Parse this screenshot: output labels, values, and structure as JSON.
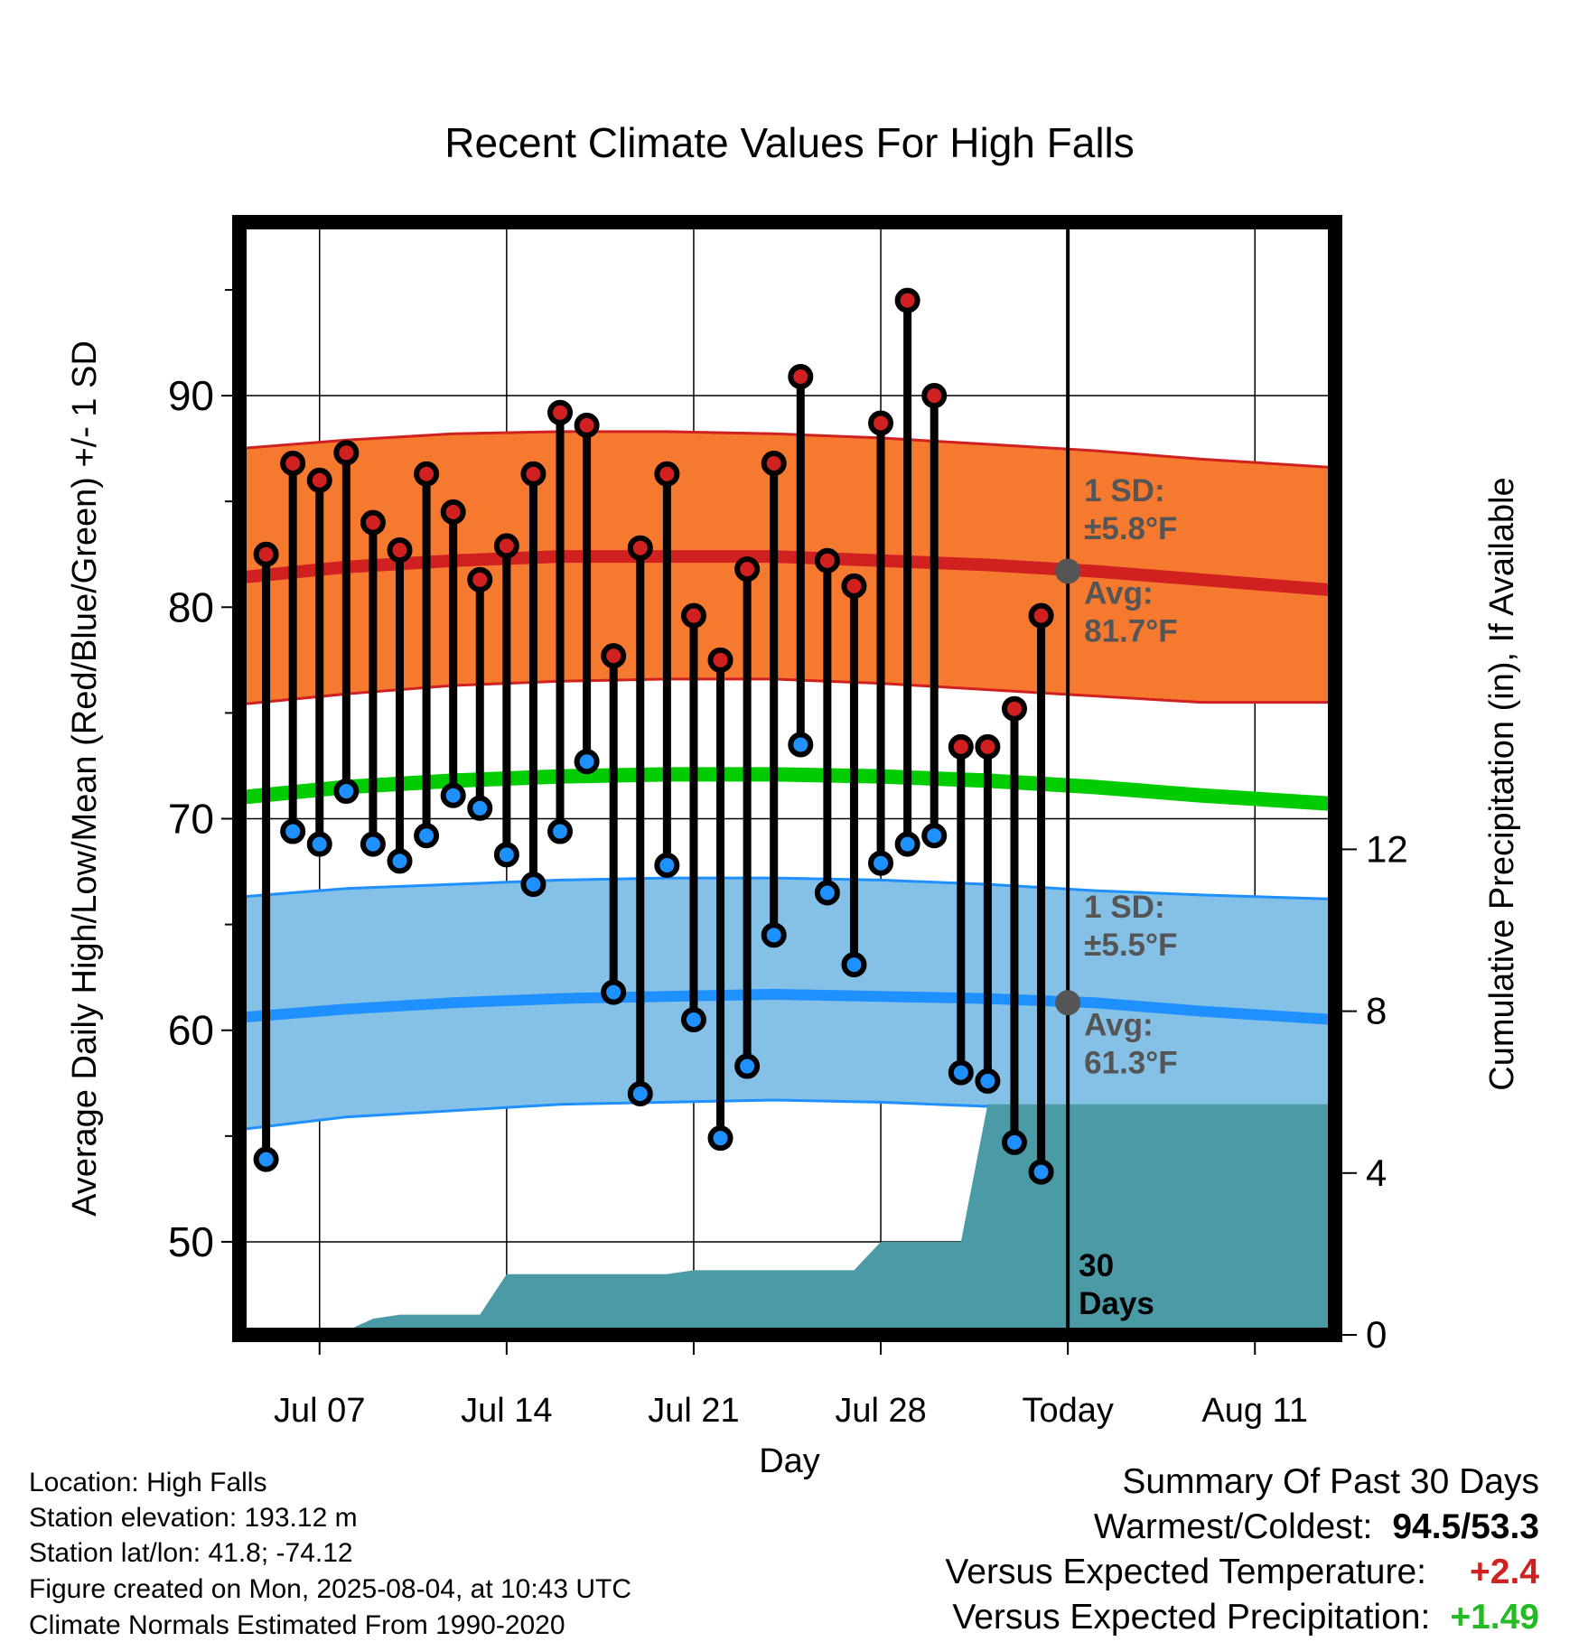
{
  "chart_data": {
    "type": "line",
    "title": "Recent Climate Values For High Falls",
    "xlabel": "Day",
    "ylabel": "Average Daily High/Low/Mean (Red/Blue/Green) +/- 1 SD",
    "y2label": "Cumulative Precipitation (in), If Available",
    "ylim": [
      45.6,
      98.2
    ],
    "y2lim": [
      0,
      27.5
    ],
    "xlim": [
      "2025-07-04",
      "2025-08-14"
    ],
    "y_ticks": [
      50,
      60,
      70,
      80,
      90
    ],
    "y2_ticks": [
      0,
      4,
      8,
      12
    ],
    "x_ticks": [
      {
        "x": "2025-07-07",
        "label": "Jul 07"
      },
      {
        "x": "2025-07-14",
        "label": "Jul 14"
      },
      {
        "x": "2025-07-21",
        "label": "Jul 21"
      },
      {
        "x": "2025-07-28",
        "label": "Jul 28"
      },
      {
        "x": "2025-08-04",
        "label": "Today"
      },
      {
        "x": "2025-08-11",
        "label": "Aug 11"
      }
    ],
    "grid": true,
    "today": "2025-08-04",
    "period_label": "30\nDays",
    "daily": {
      "dates": [
        "2025-07-05",
        "2025-07-06",
        "2025-07-07",
        "2025-07-08",
        "2025-07-09",
        "2025-07-10",
        "2025-07-11",
        "2025-07-12",
        "2025-07-13",
        "2025-07-14",
        "2025-07-15",
        "2025-07-16",
        "2025-07-17",
        "2025-07-18",
        "2025-07-19",
        "2025-07-20",
        "2025-07-21",
        "2025-07-22",
        "2025-07-23",
        "2025-07-24",
        "2025-07-25",
        "2025-07-26",
        "2025-07-27",
        "2025-07-28",
        "2025-07-29",
        "2025-07-30",
        "2025-07-31",
        "2025-08-01",
        "2025-08-02",
        "2025-08-03"
      ],
      "highs": [
        82.5,
        86.8,
        86.0,
        87.3,
        84.0,
        82.7,
        86.3,
        84.5,
        81.3,
        82.9,
        86.3,
        89.2,
        88.6,
        77.7,
        82.8,
        86.3,
        79.6,
        77.5,
        81.8,
        86.8,
        90.9,
        82.2,
        81.0,
        88.7,
        94.5,
        90.0,
        73.4,
        73.4,
        75.2,
        79.6
      ],
      "lows": [
        53.9,
        69.4,
        68.8,
        71.3,
        68.8,
        68.0,
        69.2,
        71.1,
        70.5,
        68.3,
        66.9,
        69.4,
        72.7,
        61.8,
        57.0,
        67.8,
        60.5,
        54.9,
        58.3,
        64.5,
        73.5,
        66.5,
        63.1,
        67.9,
        68.8,
        69.2,
        58.0,
        57.6,
        54.7,
        53.3
      ]
    },
    "normals": {
      "dates": [
        "2025-07-04",
        "2025-07-08",
        "2025-07-12",
        "2025-07-16",
        "2025-07-20",
        "2025-07-24",
        "2025-07-28",
        "2025-08-01",
        "2025-08-05",
        "2025-08-09",
        "2025-08-14"
      ],
      "high_mean": [
        81.4,
        81.9,
        82.2,
        82.4,
        82.4,
        82.4,
        82.2,
        82.0,
        81.7,
        81.3,
        80.8
      ],
      "high_sd_upper": [
        87.5,
        87.9,
        88.2,
        88.3,
        88.3,
        88.2,
        88.0,
        87.7,
        87.4,
        87.0,
        86.6
      ],
      "high_sd_lower": [
        75.4,
        75.9,
        76.3,
        76.5,
        76.6,
        76.6,
        76.4,
        76.1,
        75.8,
        75.5,
        75.5
      ],
      "mean": [
        71.0,
        71.5,
        71.8,
        72.0,
        72.1,
        72.1,
        72.0,
        71.8,
        71.5,
        71.1,
        70.7
      ],
      "low_mean": [
        60.6,
        61.0,
        61.3,
        61.5,
        61.6,
        61.7,
        61.6,
        61.5,
        61.3,
        60.9,
        60.5
      ],
      "low_sd_upper": [
        66.3,
        66.7,
        66.9,
        67.1,
        67.2,
        67.2,
        67.1,
        66.9,
        66.6,
        66.4,
        66.2
      ],
      "low_sd_lower": [
        55.3,
        55.9,
        56.2,
        56.5,
        56.6,
        56.7,
        56.6,
        56.4,
        56.1,
        55.8,
        55.6
      ]
    },
    "precip": {
      "dates": [
        "2025-07-04",
        "2025-07-07",
        "2025-07-08",
        "2025-07-09",
        "2025-07-10",
        "2025-07-13",
        "2025-07-14",
        "2025-07-20",
        "2025-07-21",
        "2025-07-27",
        "2025-07-28",
        "2025-07-31",
        "2025-08-01",
        "2025-08-14"
      ],
      "cumulative": [
        0,
        0.1,
        0.1,
        0.4,
        0.5,
        0.5,
        1.5,
        1.5,
        1.6,
        1.6,
        2.3,
        2.3,
        5.7,
        5.7
      ]
    },
    "annotations": {
      "high": {
        "sd_label": "1 SD:",
        "sd_value": "±5.8°F",
        "avg_label": "Avg:",
        "avg_value": "81.7°F",
        "avg": 81.7
      },
      "low": {
        "sd_label": "1 SD:",
        "sd_value": "±5.5°F",
        "avg_label": "Avg:",
        "avg_value": "61.3°F",
        "avg": 61.3
      }
    },
    "colors": {
      "high_band": "#f57a30",
      "high_line": "#d02020",
      "low_band": "#85c0e6",
      "low_line": "#1e90ff",
      "mean_line": "#00cc00",
      "precip": "#4a9ba5",
      "high_dot": "#d02020",
      "low_dot": "#1e90ff",
      "annotation_text": "#555555",
      "avg_marker": "#555555"
    }
  },
  "footer": {
    "location": "Location: High Falls",
    "elevation": "Station elevation: 193.12 m",
    "latlon": "Station lat/lon: 41.8; -74.12",
    "created": "Figure created on Mon, 2025-08-04, at 10:43 UTC",
    "normals": "Climate Normals Estimated From 1990-2020"
  },
  "summary": {
    "title": "Summary Of Past 30 Days",
    "warmest_coldest_label": "Warmest/Coldest:",
    "warmest_coldest_value": "94.5/53.3",
    "temp_label": "Versus Expected Temperature:",
    "temp_value": "+2.4",
    "temp_color": "#d02020",
    "precip_label": "Versus Expected Precipitation:",
    "precip_value": "+1.49",
    "precip_color": "#22bb22"
  }
}
